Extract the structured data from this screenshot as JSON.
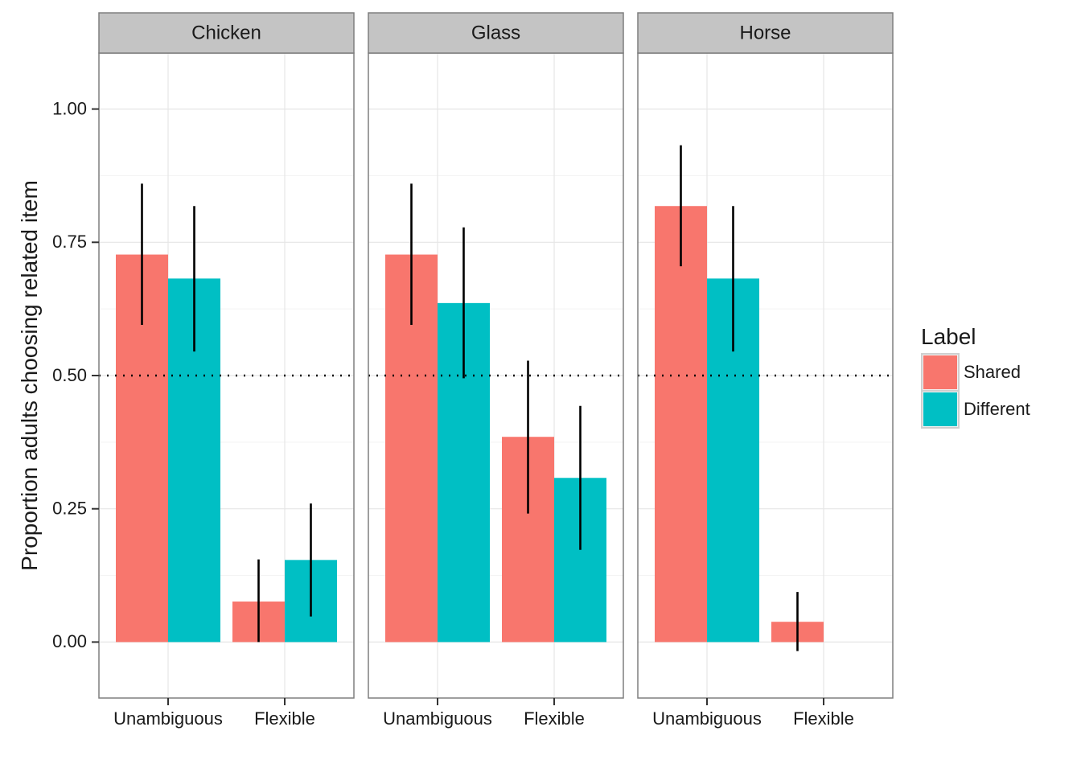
{
  "chart_data": {
    "type": "bar",
    "ylabel": "Proportion adults choosing related item",
    "xlabel": "",
    "ylim": [
      -0.105,
      1.105
    ],
    "y_ticks": [
      0.0,
      0.25,
      0.5,
      0.75,
      1.0
    ],
    "y_tick_labels": [
      "0.00",
      "0.25",
      "0.50",
      "0.75",
      "1.00"
    ],
    "categories": [
      "Unambiguous",
      "Flexible"
    ],
    "reference_line": {
      "y": 0.5,
      "style": "dotted"
    },
    "legend": {
      "title": "Label",
      "placement": "right",
      "entries": [
        {
          "name": "Shared",
          "color": "#F8766D"
        },
        {
          "name": "Different",
          "color": "#00BFC4"
        }
      ]
    },
    "grid": true,
    "facets": [
      {
        "name": "Chicken",
        "series": [
          {
            "name": "Shared",
            "values": [
              0.727,
              0.076
            ],
            "error_low": [
              0.595,
              0.0
            ],
            "error_high": [
              0.86,
              0.155
            ]
          },
          {
            "name": "Different",
            "values": [
              0.682,
              0.154
            ],
            "error_low": [
              0.545,
              0.048
            ],
            "error_high": [
              0.818,
              0.26
            ]
          }
        ]
      },
      {
        "name": "Glass",
        "series": [
          {
            "name": "Shared",
            "values": [
              0.727,
              0.385
            ],
            "error_low": [
              0.595,
              0.241
            ],
            "error_high": [
              0.86,
              0.528
            ]
          },
          {
            "name": "Different",
            "values": [
              0.636,
              0.308
            ],
            "error_low": [
              0.495,
              0.173
            ],
            "error_high": [
              0.778,
              0.443
            ]
          }
        ]
      },
      {
        "name": "Horse",
        "series": [
          {
            "name": "Shared",
            "values": [
              0.818,
              0.038
            ],
            "error_low": [
              0.705,
              -0.017
            ],
            "error_high": [
              0.932,
              0.094
            ]
          },
          {
            "name": "Different",
            "values": [
              0.682,
              null
            ],
            "error_low": [
              0.545,
              null
            ],
            "error_high": [
              0.818,
              null
            ]
          }
        ]
      }
    ]
  }
}
